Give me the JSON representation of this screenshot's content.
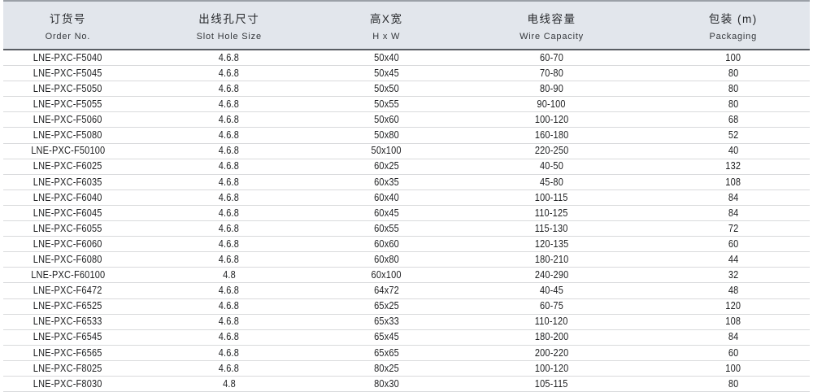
{
  "table": {
    "columns": [
      {
        "zh": "订货号",
        "en": "Order No.",
        "key": "order-no"
      },
      {
        "zh": "出线孔尺寸",
        "en": "Slot Hole Size",
        "key": "slot-hole-size"
      },
      {
        "zh": "高X宽",
        "en": "H x W",
        "key": "h-x-w"
      },
      {
        "zh": "电线容量",
        "en": "Wire Capacity",
        "key": "wire-capacity"
      },
      {
        "zh": "包装 (m)",
        "en": "Packaging",
        "key": "packaging"
      }
    ],
    "rows": [
      [
        "LNE-PXC-F5040",
        "4.6.8",
        "50x40",
        "60-70",
        "100"
      ],
      [
        "LNE-PXC-F5045",
        "4.6.8",
        "50x45",
        "70-80",
        "80"
      ],
      [
        "LNE-PXC-F5050",
        "4.6.8",
        "50x50",
        "80-90",
        "80"
      ],
      [
        "LNE-PXC-F5055",
        "4.6.8",
        "50x55",
        "90-100",
        "80"
      ],
      [
        "LNE-PXC-F5060",
        "4.6.8",
        "50x60",
        "100-120",
        "68"
      ],
      [
        "LNE-PXC-F5080",
        "4.6.8",
        "50x80",
        "160-180",
        "52"
      ],
      [
        "LNE-PXC-F50100",
        "4.6.8",
        "50x100",
        "220-250",
        "40"
      ],
      [
        "LNE-PXC-F6025",
        "4.6.8",
        "60x25",
        "40-50",
        "132"
      ],
      [
        "LNE-PXC-F6035",
        "4.6.8",
        "60x35",
        "45-80",
        "108"
      ],
      [
        "LNE-PXC-F6040",
        "4.6.8",
        "60x40",
        "100-115",
        "84"
      ],
      [
        "LNE-PXC-F6045",
        "4.6.8",
        "60x45",
        "110-125",
        "84"
      ],
      [
        "LNE-PXC-F6055",
        "4.6.8",
        "60x55",
        "115-130",
        "72"
      ],
      [
        "LNE-PXC-F6060",
        "4.6.8",
        "60x60",
        "120-135",
        "60"
      ],
      [
        "LNE-PXC-F6080",
        "4.6.8",
        "60x80",
        "180-210",
        "44"
      ],
      [
        "LNE-PXC-F60100",
        "4.8",
        "60x100",
        "240-290",
        "32"
      ],
      [
        "LNE-PXC-F6472",
        "4.6.8",
        "64x72",
        "40-45",
        "48"
      ],
      [
        "LNE-PXC-F6525",
        "4.6.8",
        "65x25",
        "60-75",
        "120"
      ],
      [
        "LNE-PXC-F6533",
        "4.6.8",
        "65x33",
        "110-120",
        "108"
      ],
      [
        "LNE-PXC-F6545",
        "4.6.8",
        "65x45",
        "180-200",
        "84"
      ],
      [
        "LNE-PXC-F6565",
        "4.6.8",
        "65x65",
        "200-220",
        "60"
      ],
      [
        "LNE-PXC-F8025",
        "4.6.8",
        "80x25",
        "100-120",
        "100"
      ],
      [
        "LNE-PXC-F8030",
        "4.8",
        "80x30",
        "105-115",
        "80"
      ]
    ]
  },
  "colors": {
    "header_bg": "#e2e6ec",
    "header_top_border": "#9ba0a7",
    "header_bottom_border": "#595d63",
    "row_divider": "#d9dadc",
    "header_text": "#26282b",
    "cell_text": "#1e1f21",
    "row_bg": "#ffffff"
  }
}
